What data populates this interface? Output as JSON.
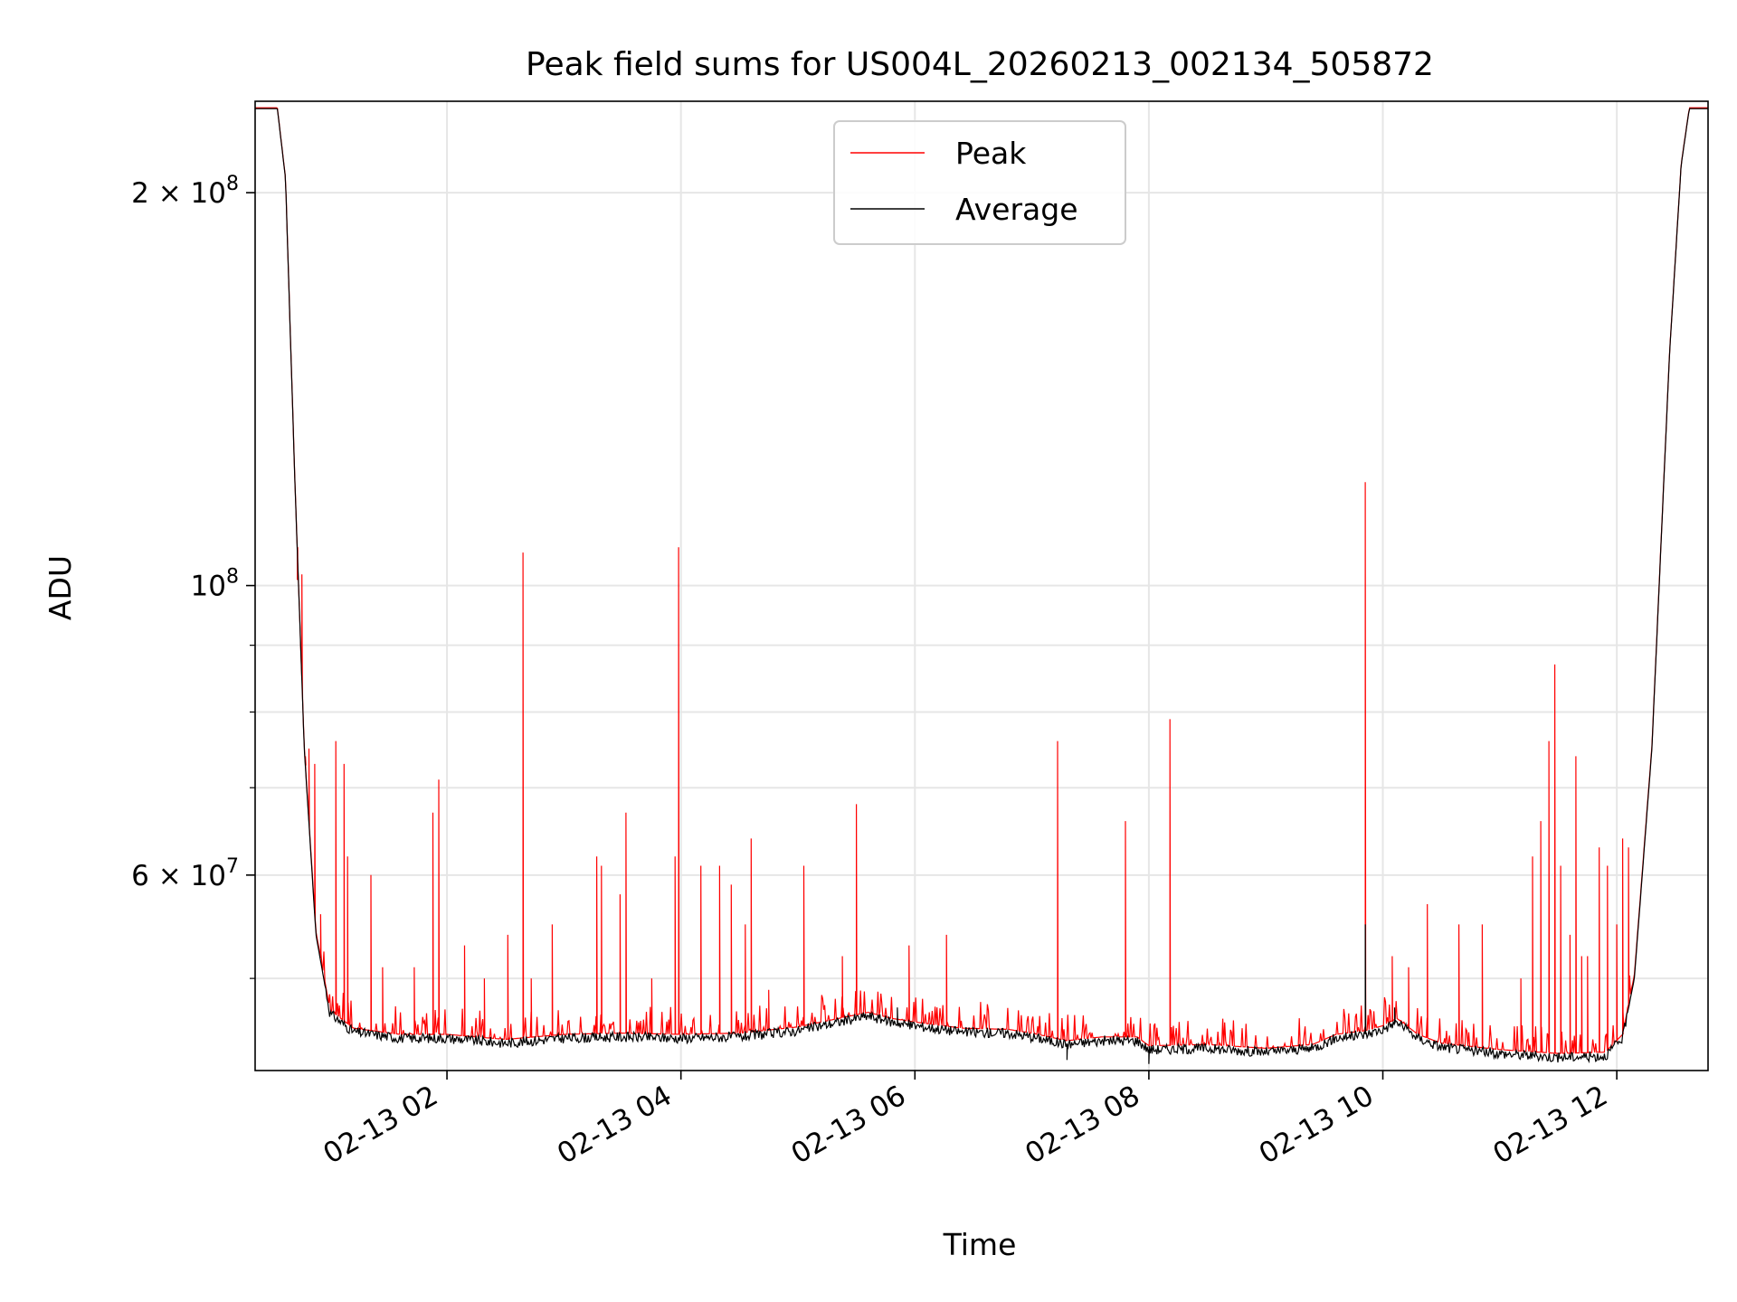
{
  "chart_data": {
    "type": "line",
    "title": "Peak field sums for US004L_20260213_002134_505872",
    "xlabel": "Time",
    "ylabel": "ADU",
    "yscale": "log",
    "ylim": [
      42500000,
      235000000
    ],
    "xlim_hours": [
      0.36,
      12.78
    ],
    "grid": true,
    "legend_position": "upper center",
    "x_ticks": [
      {
        "hour": 2,
        "label": "02-13 02"
      },
      {
        "hour": 4,
        "label": "02-13 04"
      },
      {
        "hour": 6,
        "label": "02-13 06"
      },
      {
        "hour": 8,
        "label": "02-13 08"
      },
      {
        "hour": 10,
        "label": "02-13 10"
      },
      {
        "hour": 12,
        "label": "02-13 12"
      }
    ],
    "y_ticks_major": [
      {
        "value": 60000000,
        "mantissa": "6",
        "exponent": "7"
      },
      {
        "value": 100000000,
        "mantissa": "",
        "exponent": "8"
      },
      {
        "value": 200000000,
        "mantissa": "2",
        "exponent": "8"
      }
    ],
    "y_ticks_minor": [
      50000000,
      70000000,
      80000000,
      90000000
    ],
    "series": [
      {
        "name": "Peak",
        "color": "#ff0000",
        "baseline_offset": 300000,
        "spikes": [
          [
            0.72,
            101000000
          ],
          [
            0.76,
            102000000
          ],
          [
            0.79,
            74000000
          ],
          [
            0.82,
            75000000
          ],
          [
            0.87,
            73000000
          ],
          [
            0.92,
            56000000
          ],
          [
            1.05,
            76000000
          ],
          [
            1.12,
            73000000
          ],
          [
            1.15,
            62000000
          ],
          [
            1.35,
            60000000
          ],
          [
            1.45,
            51000000
          ],
          [
            1.72,
            51000000
          ],
          [
            1.88,
            67000000
          ],
          [
            1.93,
            71000000
          ],
          [
            2.15,
            53000000
          ],
          [
            2.32,
            50000000
          ],
          [
            2.52,
            54000000
          ],
          [
            2.65,
            106000000
          ],
          [
            2.72,
            50000000
          ],
          [
            2.9,
            55000000
          ],
          [
            3.28,
            62000000
          ],
          [
            3.32,
            61000000
          ],
          [
            3.48,
            58000000
          ],
          [
            3.53,
            67000000
          ],
          [
            3.75,
            50000000
          ],
          [
            3.95,
            62000000
          ],
          [
            3.98,
            107000000
          ],
          [
            4.17,
            61000000
          ],
          [
            4.33,
            61000000
          ],
          [
            4.43,
            59000000
          ],
          [
            4.55,
            55000000
          ],
          [
            4.6,
            64000000
          ],
          [
            4.75,
            49000000
          ],
          [
            5.05,
            61000000
          ],
          [
            5.38,
            52000000
          ],
          [
            5.5,
            68000000
          ],
          [
            5.95,
            53000000
          ],
          [
            6.27,
            54000000
          ],
          [
            6.27,
            50000000
          ],
          [
            7.22,
            76000000
          ],
          [
            7.8,
            66000000
          ],
          [
            8.18,
            79000000
          ],
          [
            9.85,
            120000000
          ],
          [
            10.08,
            52000000
          ],
          [
            10.22,
            51000000
          ],
          [
            10.38,
            57000000
          ],
          [
            10.65,
            55000000
          ],
          [
            10.85,
            55000000
          ],
          [
            11.18,
            50000000
          ],
          [
            11.28,
            62000000
          ],
          [
            11.35,
            66000000
          ],
          [
            11.42,
            76000000
          ],
          [
            11.47,
            87000000
          ],
          [
            11.52,
            61000000
          ],
          [
            11.6,
            54000000
          ],
          [
            11.65,
            74000000
          ],
          [
            11.7,
            52000000
          ],
          [
            11.75,
            52000000
          ],
          [
            11.85,
            63000000
          ],
          [
            11.92,
            61000000
          ],
          [
            12.0,
            55000000
          ],
          [
            12.05,
            64000000
          ],
          [
            12.1,
            63000000
          ]
        ]
      },
      {
        "name": "Average",
        "color": "#000000",
        "profile": [
          [
            0.36,
            232000000
          ],
          [
            0.55,
            232000000
          ],
          [
            0.62,
            205000000
          ],
          [
            0.7,
            120000000
          ],
          [
            0.78,
            75000000
          ],
          [
            0.88,
            54000000
          ],
          [
            1.0,
            47000000
          ],
          [
            1.2,
            45500000
          ],
          [
            1.6,
            45000000
          ],
          [
            2.0,
            45000000
          ],
          [
            2.5,
            44600000
          ],
          [
            3.0,
            45000000
          ],
          [
            3.5,
            45100000
          ],
          [
            4.0,
            45000000
          ],
          [
            4.5,
            45100000
          ],
          [
            5.0,
            45600000
          ],
          [
            5.3,
            46200000
          ],
          [
            5.6,
            46800000
          ],
          [
            5.8,
            46300000
          ],
          [
            6.0,
            46000000
          ],
          [
            6.4,
            45500000
          ],
          [
            6.8,
            45400000
          ],
          [
            7.0,
            45100000
          ],
          [
            7.3,
            44500000
          ],
          [
            7.6,
            44800000
          ],
          [
            7.9,
            44800000
          ],
          [
            8.0,
            44100000
          ],
          [
            8.5,
            44200000
          ],
          [
            9.0,
            43900000
          ],
          [
            9.4,
            44200000
          ],
          [
            9.6,
            45000000
          ],
          [
            9.85,
            45300000
          ],
          [
            10.0,
            45700000
          ],
          [
            10.12,
            46300000
          ],
          [
            10.3,
            45000000
          ],
          [
            10.5,
            44300000
          ],
          [
            11.0,
            43800000
          ],
          [
            11.5,
            43500000
          ],
          [
            11.9,
            43600000
          ],
          [
            12.05,
            45000000
          ],
          [
            12.15,
            50000000
          ],
          [
            12.3,
            75000000
          ],
          [
            12.45,
            150000000
          ],
          [
            12.55,
            210000000
          ],
          [
            12.62,
            232000000
          ],
          [
            12.78,
            232000000
          ]
        ],
        "dips": [
          [
            5.85,
            47500000
          ],
          [
            7.3,
            43300000
          ],
          [
            8.0,
            43000000
          ],
          [
            9.85,
            55000000
          ],
          [
            10.1,
            47500000
          ]
        ]
      }
    ]
  }
}
